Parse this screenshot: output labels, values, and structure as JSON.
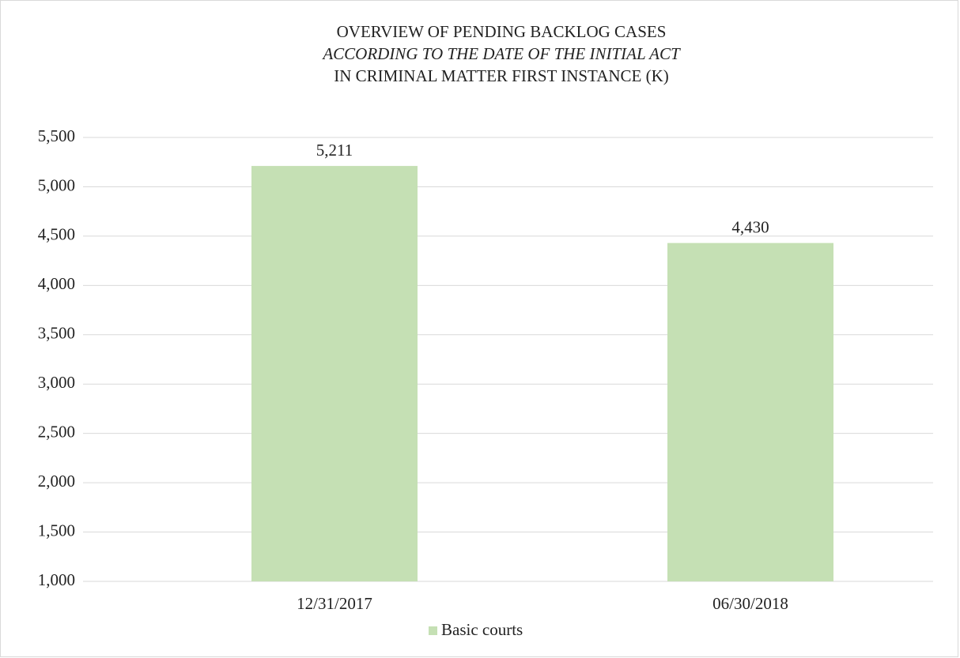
{
  "chart_data": {
    "type": "bar",
    "title": [
      "OVERVIEW OF PENDING BACKLOG CASES",
      "ACCORDING TO THE DATE OF THE INITIAL ACT",
      "IN CRIMINAL MATTER FIRST INSTANCE (K)"
    ],
    "categories": [
      "12/31/2017",
      "06/30/2018"
    ],
    "series": [
      {
        "name": "Basic courts",
        "color": "#c5e0b4",
        "values": [
          5211,
          4430
        ],
        "value_labels": [
          "5,211",
          "4,430"
        ]
      }
    ],
    "ylim": [
      1000,
      5500
    ],
    "yticks": [
      {
        "value": 1000,
        "label": "1,000"
      },
      {
        "value": 1500,
        "label": "1,500"
      },
      {
        "value": 2000,
        "label": "2,000"
      },
      {
        "value": 2500,
        "label": "2,500"
      },
      {
        "value": 3000,
        "label": "3,000"
      },
      {
        "value": 3500,
        "label": "3,500"
      },
      {
        "value": 4000,
        "label": "4,000"
      },
      {
        "value": 4500,
        "label": "4,500"
      },
      {
        "value": 5000,
        "label": "5,000"
      },
      {
        "value": 5500,
        "label": "5,500"
      }
    ],
    "grid": true,
    "legend": "bottom"
  }
}
